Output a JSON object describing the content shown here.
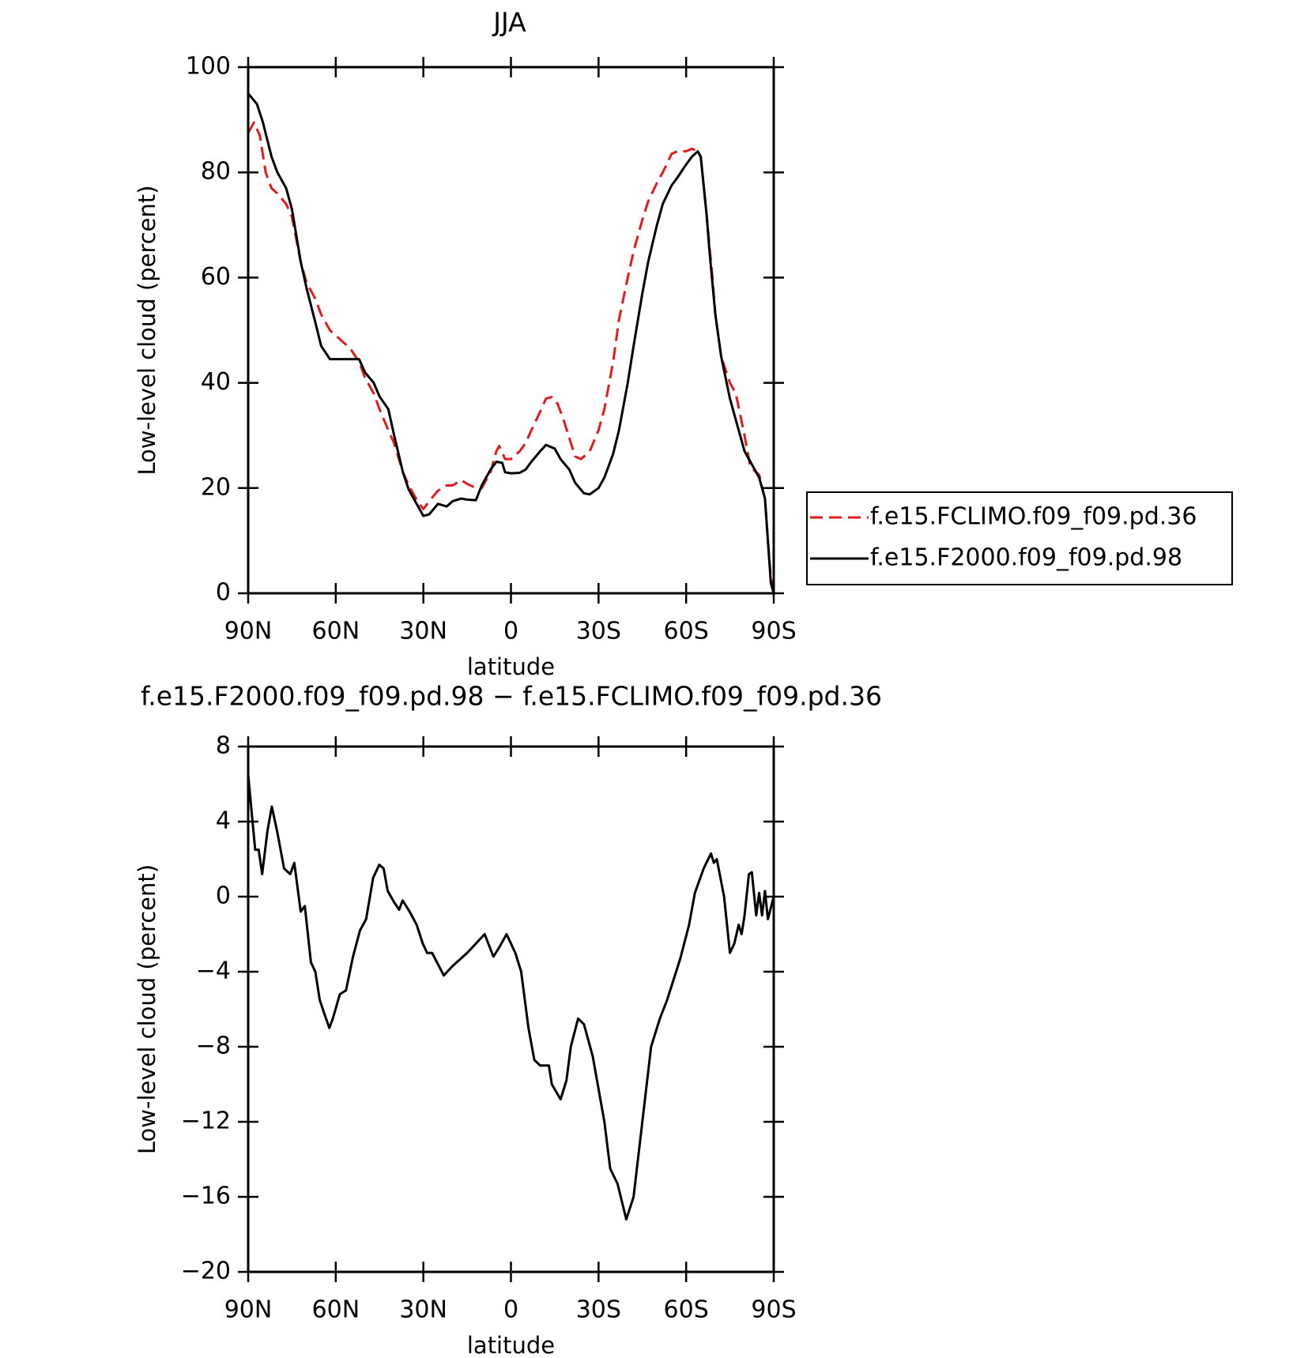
{
  "chart_data": [
    {
      "type": "line",
      "title": "JJA",
      "ylabel": "Low-level cloud (percent)",
      "xlabel": "latitude",
      "xlim": [
        90,
        -90
      ],
      "xticks": [
        {
          "value": 90,
          "label": "90N"
        },
        {
          "value": 60,
          "label": "60N"
        },
        {
          "value": 30,
          "label": "30N"
        },
        0,
        {
          "value": -30,
          "label": "30S"
        },
        {
          "value": -60,
          "label": "60S"
        },
        {
          "value": -90,
          "label": "90S"
        }
      ],
      "ylim": [
        0,
        100
      ],
      "yticks": [
        0,
        20,
        40,
        60,
        80,
        100
      ],
      "legend": true,
      "series": [
        {
          "name": "f.e15.FCLIMO.f09_f09.pd.36",
          "color": "#e41a1c",
          "dashed": true,
          "x": [
            90,
            88,
            86,
            84,
            82,
            80,
            77,
            75,
            72,
            70,
            67,
            65,
            62,
            60,
            57,
            55,
            52,
            50,
            47,
            45,
            42,
            40,
            37,
            35,
            32,
            30,
            28,
            25,
            22,
            20,
            17,
            15,
            12,
            10,
            7,
            5,
            4,
            2,
            0,
            -3,
            -5,
            -7,
            -10,
            -12,
            -14,
            -16,
            -18,
            -20,
            -22,
            -24,
            -27,
            -30,
            -32,
            -35,
            -37,
            -40,
            -42,
            -45,
            -47,
            -50,
            -52,
            -55,
            -57,
            -60,
            -62,
            -64,
            -65,
            -67,
            -69,
            -70,
            -72,
            -75,
            -77,
            -80,
            -82,
            -85,
            -87,
            -88,
            -89,
            -90
          ],
          "values": [
            87.5,
            89.5,
            87,
            80,
            77,
            76,
            74,
            71.5,
            63,
            59,
            56,
            53,
            50,
            49,
            47.5,
            46.5,
            44,
            41,
            38,
            35,
            31,
            28.5,
            23,
            20.5,
            17.5,
            16,
            17.5,
            19.5,
            20.5,
            20.5,
            21.5,
            20.8,
            20,
            20,
            23,
            27,
            28,
            25.5,
            25.5,
            27,
            28.5,
            31,
            34.5,
            37,
            37.3,
            36,
            33,
            29.5,
            26,
            25.5,
            27,
            31,
            35,
            44,
            52,
            60,
            65,
            71,
            74.5,
            78,
            80,
            83.5,
            84,
            84,
            84.5,
            84,
            83,
            72,
            60,
            53,
            45,
            40,
            38,
            30,
            24,
            22.5,
            18,
            10,
            3,
            0
          ]
        },
        {
          "name": "f.e15.F2000.f09_f09.pd.98",
          "color": "#000000",
          "dashed": false,
          "x": [
            90,
            87,
            85,
            82,
            80,
            77,
            75,
            72,
            70,
            67,
            65,
            62,
            60,
            55,
            52,
            50,
            47,
            45,
            42,
            40,
            37,
            35,
            32,
            30,
            28,
            25,
            22,
            20,
            17,
            15,
            12,
            10,
            7,
            5,
            3,
            2,
            0,
            -3,
            -5,
            -7,
            -10,
            -12,
            -15,
            -17,
            -20,
            -22,
            -25,
            -27,
            -30,
            -32,
            -35,
            -37,
            -40,
            -42,
            -45,
            -47,
            -50,
            -52,
            -55,
            -57,
            -60,
            -62,
            -64,
            -65,
            -67,
            -68,
            -70,
            -72,
            -75,
            -77,
            -80,
            -82,
            -85,
            -87,
            -88,
            -89,
            -90
          ],
          "values": [
            95,
            93,
            89.6,
            83,
            80,
            77,
            73,
            63,
            58,
            51.5,
            47,
            44.5,
            44.5,
            44.5,
            44.5,
            42,
            40,
            37.4,
            35,
            30,
            23,
            19.7,
            16.7,
            14.7,
            15,
            17,
            16.5,
            17.5,
            18,
            17.8,
            17.7,
            20.5,
            23.5,
            25,
            24.8,
            23,
            22.8,
            22.9,
            23.5,
            25,
            27,
            28.2,
            27.5,
            25.5,
            23.5,
            21,
            19,
            18.8,
            20,
            22,
            26.5,
            31,
            40,
            47,
            57,
            63,
            70,
            74,
            77.5,
            79,
            81.5,
            83,
            84,
            83,
            72,
            65,
            53,
            45,
            37,
            33,
            27,
            25,
            22,
            18,
            10,
            2,
            0
          ]
        }
      ]
    },
    {
      "type": "line",
      "title": "f.e15.F2000.f09_f09.pd.98 − f.e15.FCLIMO.f09_f09.pd.36",
      "ylabel": "Low-level cloud (percent)",
      "xlabel": "latitude",
      "xlim": [
        90,
        -90
      ],
      "xticks": [
        {
          "value": 90,
          "label": "90N"
        },
        {
          "value": 60,
          "label": "60N"
        },
        {
          "value": 30,
          "label": "30N"
        },
        0,
        {
          "value": -30,
          "label": "30S"
        },
        {
          "value": -60,
          "label": "60S"
        },
        {
          "value": -90,
          "label": "90S"
        }
      ],
      "ylim": [
        -20,
        8
      ],
      "yticks": [
        {
          "value": -20,
          "label": "−20"
        },
        {
          "value": -16,
          "label": "−16"
        },
        {
          "value": -12,
          "label": "−12"
        },
        {
          "value": -8,
          "label": "−8"
        },
        {
          "value": -4,
          "label": "−4"
        },
        0,
        4,
        8
      ],
      "legend": false,
      "series": [
        {
          "color": "#000000",
          "dashed": false,
          "x": [
            90,
            88.5,
            87.6,
            86.4,
            85.2,
            83.4,
            81.9,
            80.1,
            77.7,
            75.6,
            74.2,
            72,
            70.6,
            68.5,
            67,
            65.5,
            64,
            62.2,
            61,
            58.6,
            56.5,
            54.1,
            51.7,
            49.6,
            47.2,
            45.1,
            43.6,
            42.2,
            40,
            38.3,
            37.1,
            34.7,
            32.3,
            30.2,
            28.7,
            27,
            23,
            20,
            15,
            12,
            9,
            6,
            4,
            1.5,
            -1.5,
            -3.5,
            -6,
            -8,
            -10,
            -13,
            -14,
            -17,
            -19,
            -20.5,
            -23,
            -25,
            -28,
            -32,
            -34,
            -36.5,
            -39.5,
            -42,
            -45,
            -48,
            -51,
            -53.5,
            -58,
            -61,
            -63,
            -66,
            -68.5,
            -69.5,
            -70.5,
            -73,
            -75,
            -76.5,
            -78,
            -79,
            -80,
            -81.5,
            -82.5,
            -84,
            -85,
            -86,
            -87,
            -88,
            -90
          ],
          "values": [
            6.5,
            4,
            2.5,
            2.5,
            1.2,
            3.5,
            4.8,
            3.5,
            1.5,
            1.2,
            1.8,
            -0.8,
            -0.5,
            -3.5,
            -4,
            -5.5,
            -6.2,
            -7,
            -6.5,
            -5.2,
            -5,
            -3.2,
            -1.8,
            -1.2,
            1,
            1.7,
            1.5,
            0.3,
            -0.3,
            -0.7,
            -0.2,
            -0.8,
            -1.5,
            -2.5,
            -3,
            -3,
            -4.2,
            -3.7,
            -3,
            -2.5,
            -2,
            -3.2,
            -2.7,
            -2,
            -3,
            -4,
            -7,
            -8.7,
            -9,
            -9,
            -10,
            -10.8,
            -9.8,
            -8,
            -6.5,
            -6.8,
            -8.5,
            -12,
            -14.5,
            -15.3,
            -17.2,
            -16,
            -12,
            -8,
            -6.5,
            -5.5,
            -3.3,
            -1.5,
            0.2,
            1.5,
            2.3,
            1.8,
            2,
            0,
            -3,
            -2.5,
            -1.5,
            -2,
            -1,
            1.2,
            1.3,
            -1,
            0.2,
            -1,
            0.3,
            -1.2,
            0
          ]
        }
      ]
    }
  ]
}
